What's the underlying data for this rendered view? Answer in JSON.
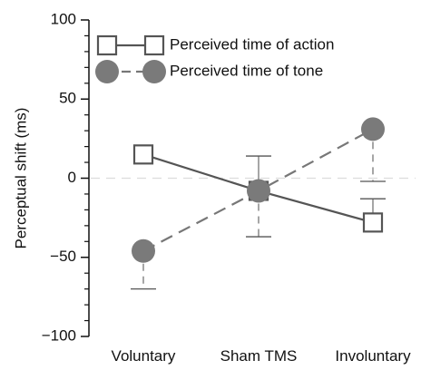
{
  "chart_data": {
    "type": "line",
    "title": "",
    "xlabel": "",
    "ylabel": "Perceptual shift (ms)",
    "categories": [
      "Voluntary",
      "Sham TMS",
      "Involuntary"
    ],
    "ylim": [
      -100,
      100
    ],
    "yticks": [
      -100,
      -50,
      0,
      50,
      100
    ],
    "ytick_labels": [
      "−100",
      "−50",
      "0",
      "50",
      "100"
    ],
    "zero_reference_line": true,
    "legend_position": "top-left",
    "series": [
      {
        "name": "Perceived time of action",
        "values": [
          15,
          -8,
          -28
        ],
        "error_upper": [
          24,
          14,
          -13
        ],
        "error_lower": [
          24,
          -8,
          -28
        ],
        "marker": "open-square",
        "line": "solid",
        "color": "#555555"
      },
      {
        "name": "Perceived time of tone",
        "values": [
          -46,
          -8,
          31
        ],
        "error_upper": [
          -46,
          -8,
          31
        ],
        "error_lower": [
          -70,
          -37,
          -2
        ],
        "marker": "filled-circle",
        "line": "dashed",
        "color": "#777777"
      }
    ]
  }
}
